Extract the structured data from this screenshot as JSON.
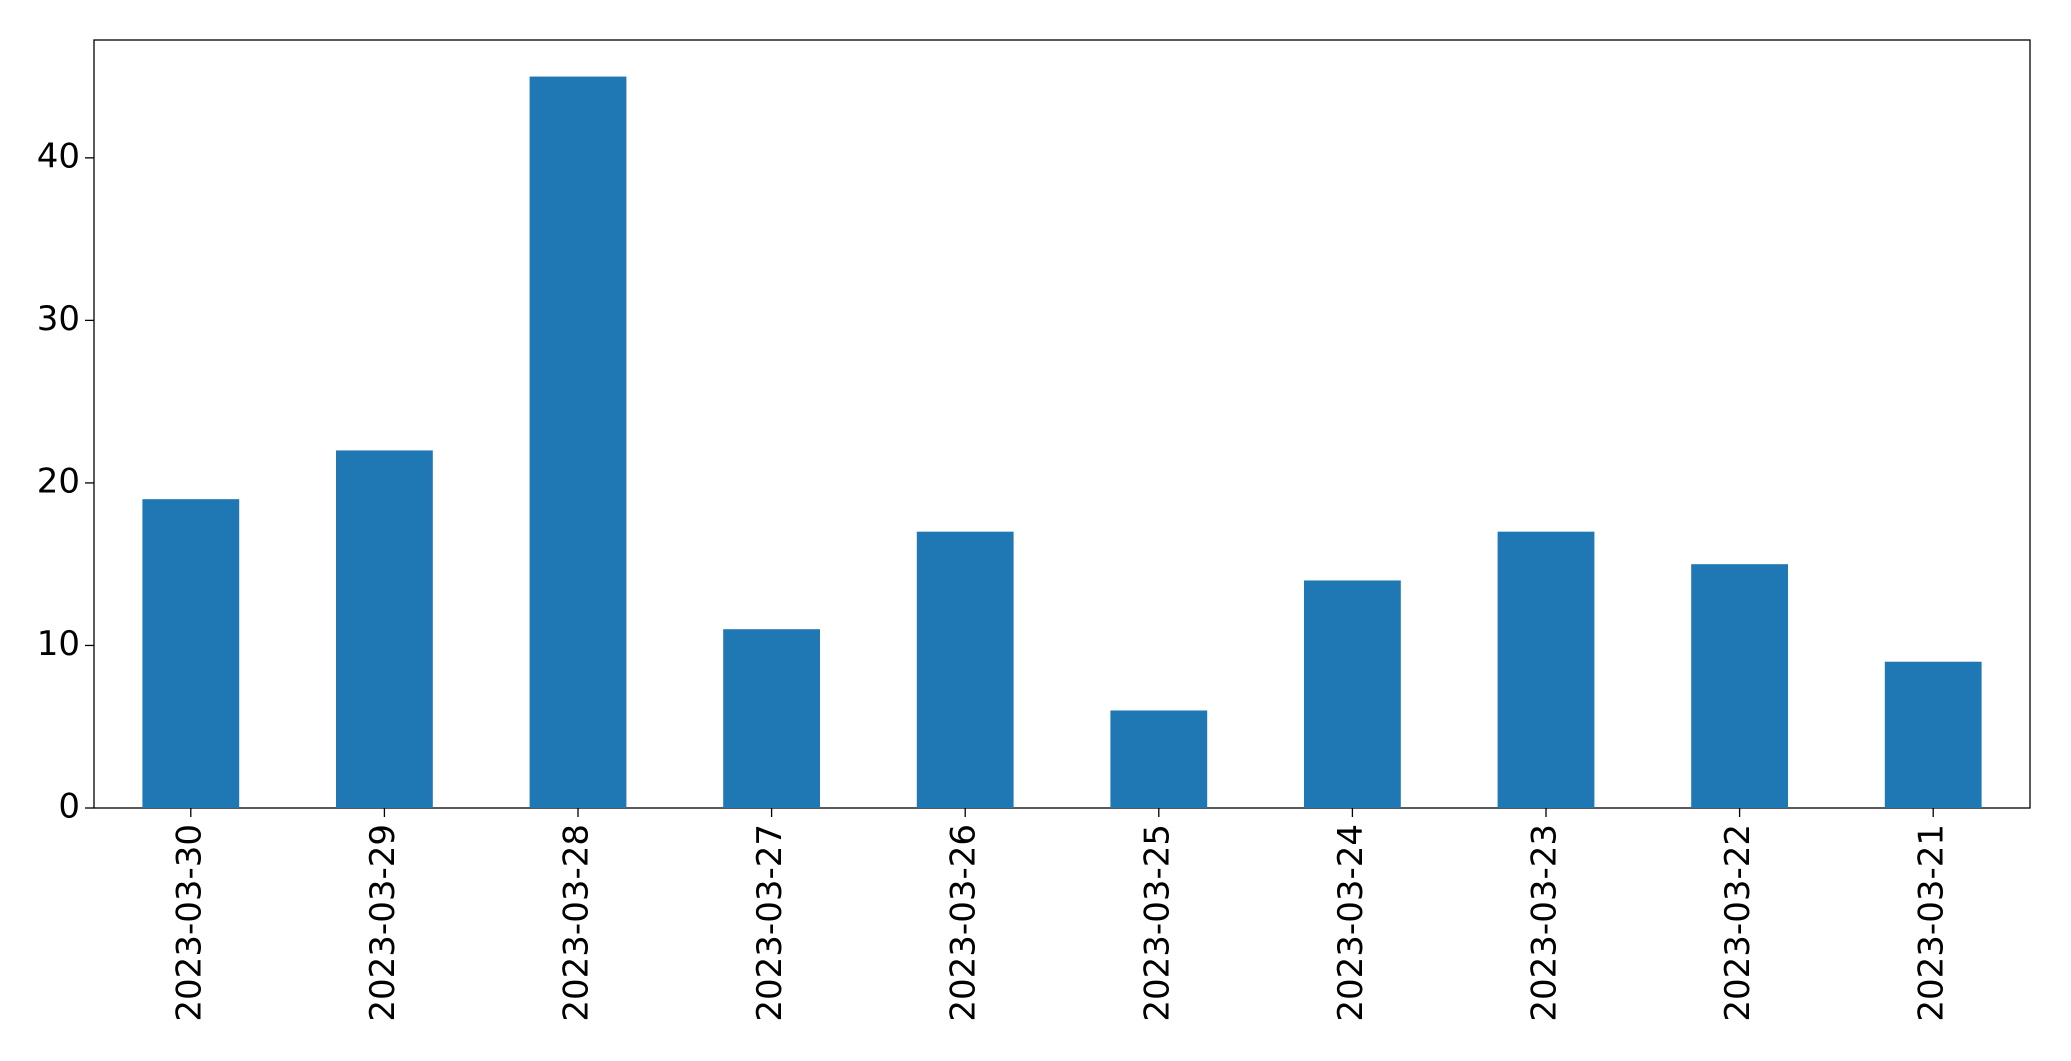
{
  "chart_data": {
    "type": "bar",
    "categories": [
      "2023-03-30",
      "2023-03-29",
      "2023-03-28",
      "2023-03-27",
      "2023-03-26",
      "2023-03-25",
      "2023-03-24",
      "2023-03-23",
      "2023-03-22",
      "2023-03-21"
    ],
    "values": [
      19,
      22,
      45,
      11,
      17,
      6,
      14,
      17,
      15,
      9
    ],
    "color": "#1f77b4",
    "ylim": [
      0,
      47.25
    ],
    "yticks": [
      0,
      10,
      20,
      30,
      40
    ],
    "grid": false
  }
}
